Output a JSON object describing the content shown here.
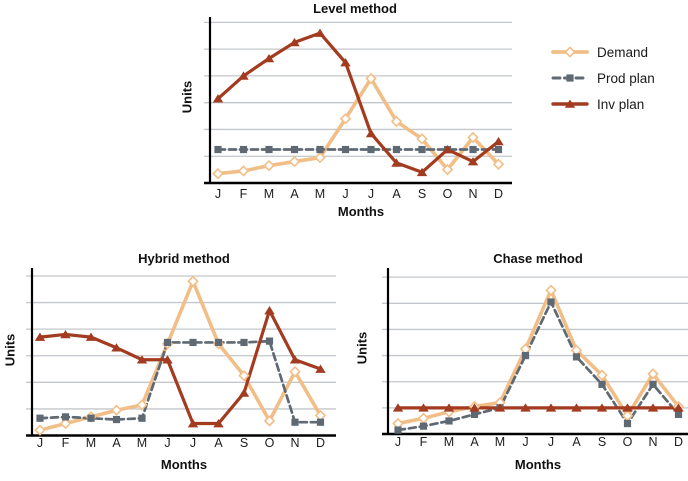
{
  "page": {
    "background": "#FFFFFF"
  },
  "colors": {
    "demand": "#F1BE87",
    "prod_plan": "#5E6973",
    "inv_plan": "#A23B1F",
    "marker_fill_demand": "#FFFFFF",
    "gridline": "#C3C7CB",
    "axis": "#000000",
    "text": "#1A1A1A"
  },
  "legend": {
    "items": [
      {
        "label": "Demand",
        "series": "demand"
      },
      {
        "label": "Prod plan",
        "series": "prod_plan"
      },
      {
        "label": "Inv plan",
        "series": "inv_plan"
      }
    ]
  },
  "chart_data": [
    {
      "id": "level_method",
      "type": "line",
      "title": "Level method",
      "xlabel": "Months",
      "ylabel": "Units",
      "categories": [
        "J",
        "F",
        "M",
        "A",
        "M",
        "J",
        "J",
        "A",
        "S",
        "O",
        "N",
        "D"
      ],
      "ylim": [
        0,
        6.2
      ],
      "gridlines": [
        1,
        2,
        3,
        4,
        5,
        6
      ],
      "grid": true,
      "legend_position": "outside-top-right",
      "series": [
        {
          "name": "Demand",
          "key": "demand",
          "marker": "diamond",
          "line": "solid",
          "values": [
            0.35,
            0.45,
            0.65,
            0.8,
            0.95,
            2.4,
            3.9,
            2.3,
            1.65,
            0.5,
            1.7,
            0.7
          ]
        },
        {
          "name": "Prod plan",
          "key": "prod_plan",
          "marker": "square",
          "line": "dashed",
          "values": [
            1.25,
            1.25,
            1.25,
            1.25,
            1.25,
            1.25,
            1.25,
            1.25,
            1.25,
            1.25,
            1.25,
            1.25
          ]
        },
        {
          "name": "Inv plan",
          "key": "inv_plan",
          "marker": "triangle",
          "line": "solid",
          "values": [
            3.15,
            4.0,
            4.65,
            5.25,
            5.6,
            4.5,
            1.85,
            0.75,
            0.4,
            1.25,
            0.8,
            1.55
          ]
        }
      ]
    },
    {
      "id": "hybrid_method",
      "type": "line",
      "title": "Hybrid method",
      "xlabel": "Months",
      "ylabel": "Units",
      "categories": [
        "J",
        "F",
        "M",
        "A",
        "M",
        "J",
        "J",
        "A",
        "S",
        "O",
        "N",
        "D"
      ],
      "ylim": [
        0,
        6.3
      ],
      "gridlines": [
        1,
        2,
        3,
        4,
        5,
        6
      ],
      "grid": true,
      "legend_position": "none",
      "series": [
        {
          "name": "Demand",
          "key": "demand",
          "marker": "diamond",
          "line": "solid",
          "values": [
            0.2,
            0.45,
            0.7,
            0.95,
            1.15,
            3.45,
            5.8,
            3.45,
            2.25,
            0.55,
            2.4,
            0.75
          ]
        },
        {
          "name": "Prod plan",
          "key": "prod_plan",
          "marker": "square",
          "line": "dashed",
          "values": [
            0.65,
            0.7,
            0.65,
            0.6,
            0.65,
            3.5,
            3.5,
            3.5,
            3.5,
            3.55,
            0.5,
            0.5
          ]
        },
        {
          "name": "Inv plan",
          "key": "inv_plan",
          "marker": "triangle",
          "line": "solid",
          "values": [
            3.7,
            3.8,
            3.7,
            3.3,
            2.85,
            2.85,
            0.45,
            0.45,
            1.6,
            4.7,
            2.85,
            2.5
          ]
        }
      ]
    },
    {
      "id": "chase_method",
      "type": "line",
      "title": "Chase method",
      "xlabel": "Months",
      "ylabel": "Units",
      "categories": [
        "J",
        "F",
        "M",
        "A",
        "M",
        "J",
        "J",
        "A",
        "S",
        "O",
        "N",
        "D"
      ],
      "ylim": [
        0,
        6.35
      ],
      "gridlines": [
        1,
        2,
        3,
        4,
        5,
        6
      ],
      "grid": true,
      "legend_position": "none",
      "series": [
        {
          "name": "Demand",
          "key": "demand",
          "marker": "diamond",
          "line": "solid",
          "values": [
            0.4,
            0.6,
            0.85,
            1.05,
            1.2,
            3.25,
            5.5,
            3.2,
            2.25,
            0.7,
            2.3,
            1.05
          ]
        },
        {
          "name": "Prod plan",
          "key": "prod_plan",
          "marker": "square",
          "line": "dashed",
          "values": [
            0.15,
            0.3,
            0.5,
            0.75,
            1.0,
            3.0,
            5.05,
            2.95,
            1.9,
            0.4,
            1.9,
            0.75
          ]
        },
        {
          "name": "Inv plan",
          "key": "inv_plan",
          "marker": "triangle",
          "line": "solid",
          "values": [
            1.0,
            1.0,
            1.0,
            1.0,
            1.0,
            1.0,
            1.0,
            1.0,
            1.0,
            1.0,
            1.0,
            1.0
          ]
        }
      ]
    }
  ]
}
